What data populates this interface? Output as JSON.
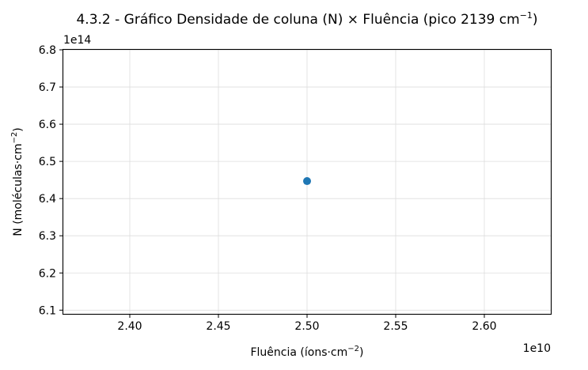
{
  "chart_data": {
    "type": "scatter",
    "title": "4.3.2 - Gráfico Densidade de coluna (N) × Fluência (pico 2139 cm",
    "title_sup": "−1",
    "title_end": ")",
    "xlabel": "Fluência (íons·cm",
    "xlabel_sup": "−2",
    "xlabel_end": ")",
    "ylabel": "N (moléculas·cm",
    "ylabel_sup": "−2",
    "ylabel_end": ")",
    "x_offset_label": "1e10",
    "y_offset_label": "1e14",
    "xlim": [
      2.3625,
      2.6375
    ],
    "ylim": [
      6.09,
      6.8
    ],
    "x_ticks": [
      {
        "value": 2.4,
        "label": "2.40"
      },
      {
        "value": 2.45,
        "label": "2.45"
      },
      {
        "value": 2.5,
        "label": "2.50"
      },
      {
        "value": 2.55,
        "label": "2.55"
      },
      {
        "value": 2.6,
        "label": "2.60"
      }
    ],
    "y_ticks": [
      {
        "value": 6.1,
        "label": "6.1"
      },
      {
        "value": 6.2,
        "label": "6.2"
      },
      {
        "value": 6.3,
        "label": "6.3"
      },
      {
        "value": 6.4,
        "label": "6.4"
      },
      {
        "value": 6.5,
        "label": "6.5"
      },
      {
        "value": 6.6,
        "label": "6.6"
      },
      {
        "value": 6.7,
        "label": "6.7"
      },
      {
        "value": 6.8,
        "label": "6.8"
      }
    ],
    "grid": true,
    "series": [
      {
        "color": "#1f77b4",
        "points": [
          {
            "x": 2.5,
            "y": 6.447
          }
        ]
      }
    ]
  }
}
